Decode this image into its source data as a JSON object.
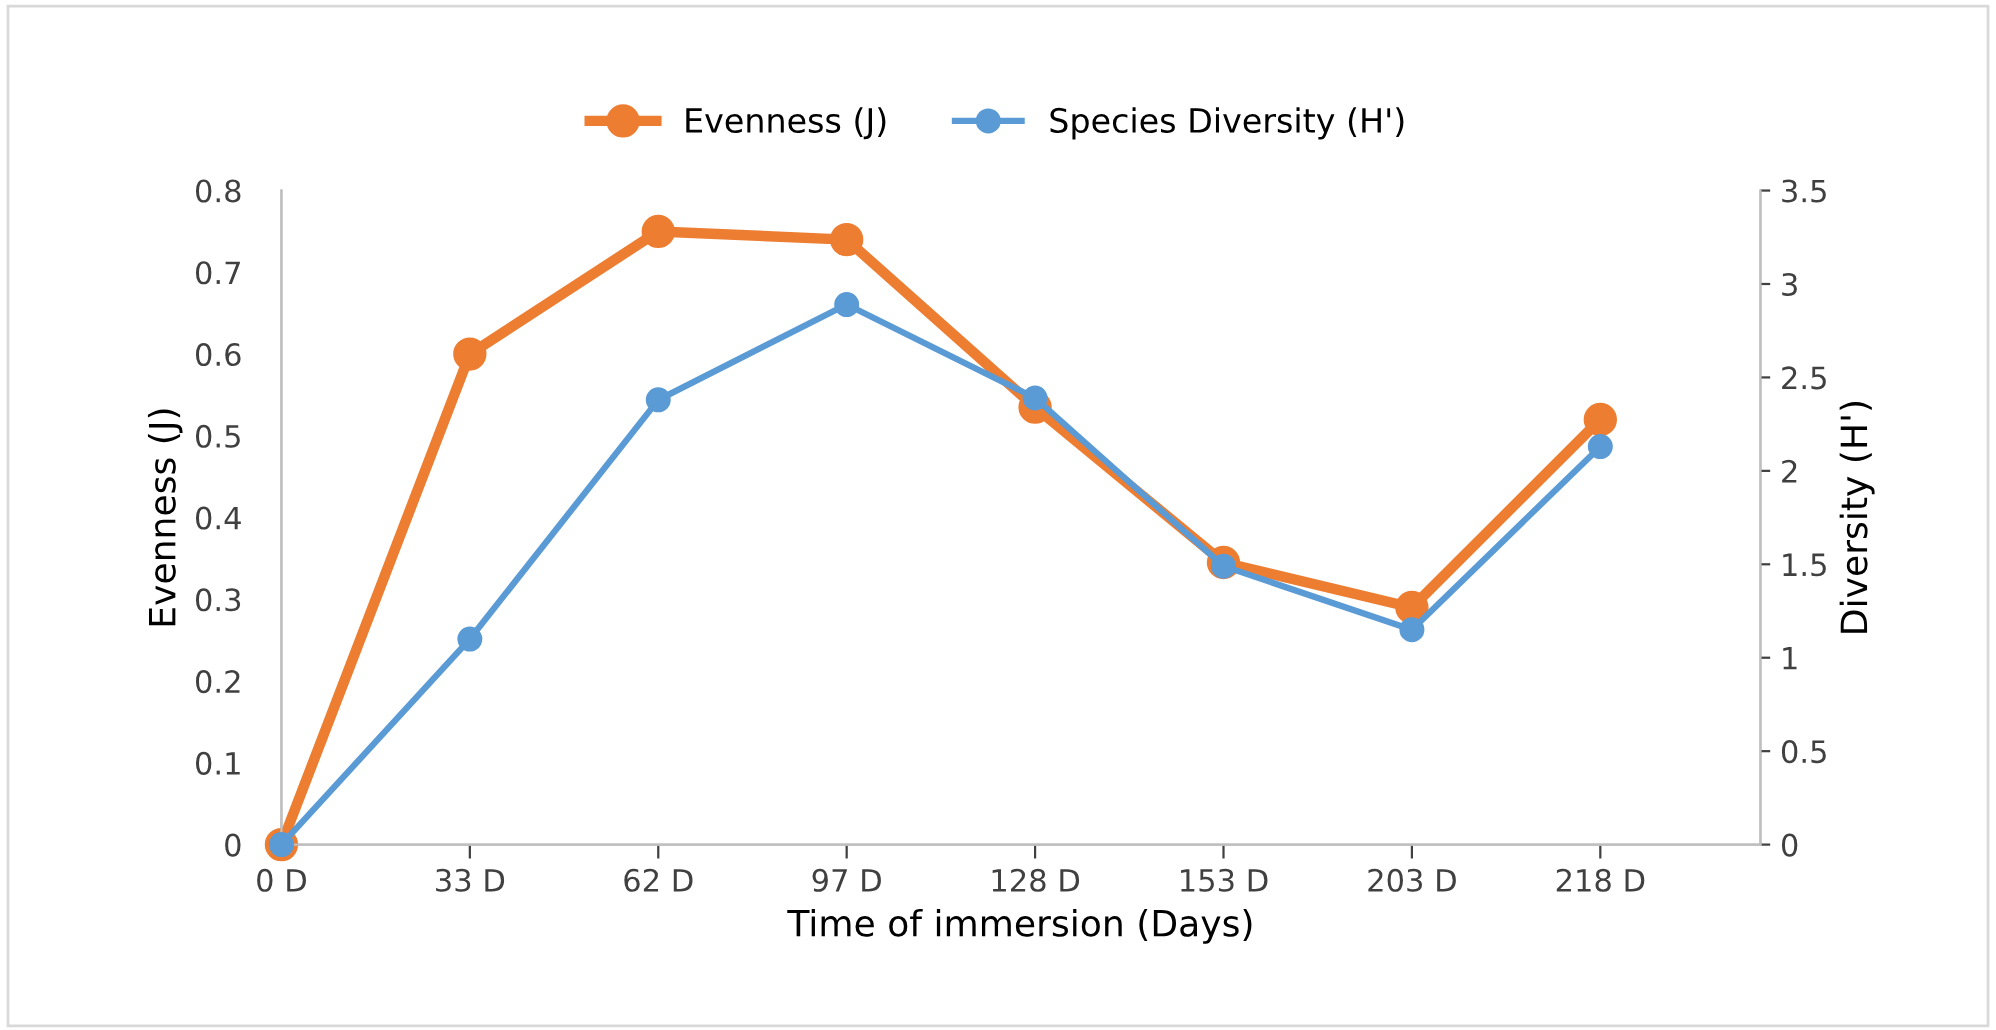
{
  "chart_data": {
    "type": "line",
    "categories": [
      "0 D",
      "33 D",
      "62 D",
      "97 D",
      "128 D",
      "153 D",
      "203 D",
      "218 D"
    ],
    "xlabel": "Time of immersion (Days)",
    "ylabel": "Evenness (J)",
    "y2label": "Diversity (H')",
    "series": [
      {
        "name": "Evenness (J)",
        "color": "#ed7d31",
        "values": [
          0,
          0.6,
          0.75,
          0.74,
          0.535,
          0.345,
          0.29,
          0.52
        ]
      },
      {
        "name": "Species Diversity (H')",
        "color": "#5b9bd5",
        "axis": "y2",
        "values": [
          0,
          1.1,
          2.38,
          2.89,
          2.39,
          1.49,
          1.15,
          2.13
        ]
      }
    ],
    "ylim": [
      0,
      0.8
    ],
    "yticks": [
      0,
      0.1,
      0.2,
      0.3,
      0.4,
      0.5,
      0.6,
      0.7,
      0.8
    ],
    "y2lim": [
      0,
      3.5
    ],
    "y2ticks": [
      0,
      0.5,
      1,
      1.5,
      2,
      2.5,
      3,
      3.5
    ],
    "legend": "top",
    "marker": "circle",
    "line_style": "solid",
    "grid": false
  }
}
